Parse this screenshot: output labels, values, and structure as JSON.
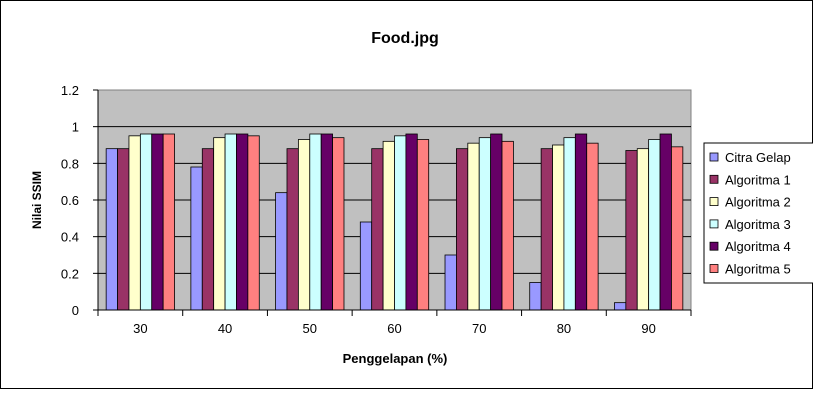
{
  "chart_data": {
    "type": "bar",
    "title": "Food.jpg",
    "xlabel": "Penggelapan (%)",
    "ylabel": "Nilai SSIM",
    "categories": [
      "30",
      "40",
      "50",
      "60",
      "70",
      "80",
      "90"
    ],
    "ylim": [
      0,
      1.2
    ],
    "yticks": [
      "0",
      "0.2",
      "0.4",
      "0.6",
      "0.8",
      "1",
      "1.2"
    ],
    "grid": true,
    "legend_position": "right",
    "plot_background": "#c0c0c0",
    "series": [
      {
        "name": "Citra Gelap",
        "color": "#9999ff",
        "values": [
          0.88,
          0.78,
          0.64,
          0.48,
          0.3,
          0.15,
          0.04
        ]
      },
      {
        "name": "Algoritma 1",
        "color": "#993366",
        "values": [
          0.88,
          0.88,
          0.88,
          0.88,
          0.88,
          0.88,
          0.87
        ]
      },
      {
        "name": "Algoritma 2",
        "color": "#ffffcc",
        "values": [
          0.95,
          0.94,
          0.93,
          0.92,
          0.91,
          0.9,
          0.88
        ]
      },
      {
        "name": "Algoritma 3",
        "color": "#ccffff",
        "values": [
          0.96,
          0.96,
          0.96,
          0.95,
          0.94,
          0.94,
          0.93
        ]
      },
      {
        "name": "Algoritma 4",
        "color": "#660066",
        "values": [
          0.96,
          0.96,
          0.96,
          0.96,
          0.96,
          0.96,
          0.96
        ]
      },
      {
        "name": "Algoritma 5",
        "color": "#ff8080",
        "values": [
          0.96,
          0.95,
          0.94,
          0.93,
          0.92,
          0.91,
          0.89
        ]
      }
    ]
  }
}
